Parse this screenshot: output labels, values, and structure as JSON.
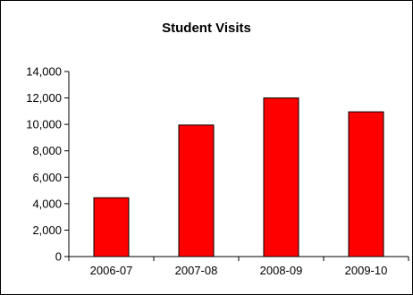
{
  "chart_data": {
    "type": "bar",
    "title": "Student Visits",
    "xlabel": "",
    "ylabel": "",
    "categories": [
      "2006-07",
      "2007-08",
      "2008-09",
      "2009-10"
    ],
    "values": [
      4450,
      9950,
      12000,
      10950
    ],
    "ylim": [
      0,
      14000
    ],
    "y_ticks": [
      0,
      2000,
      4000,
      6000,
      8000,
      10000,
      12000,
      14000
    ],
    "y_tick_labels": [
      "0",
      "2,000",
      "4,000",
      "6,000",
      "8,000",
      "10,000",
      "12,000",
      "14,000"
    ],
    "grid": false,
    "legend": "none",
    "colors": {
      "bar_fill": "#ff0000",
      "bar_stroke": "#000000",
      "axis": "#000000",
      "background": "#ffffff"
    }
  }
}
